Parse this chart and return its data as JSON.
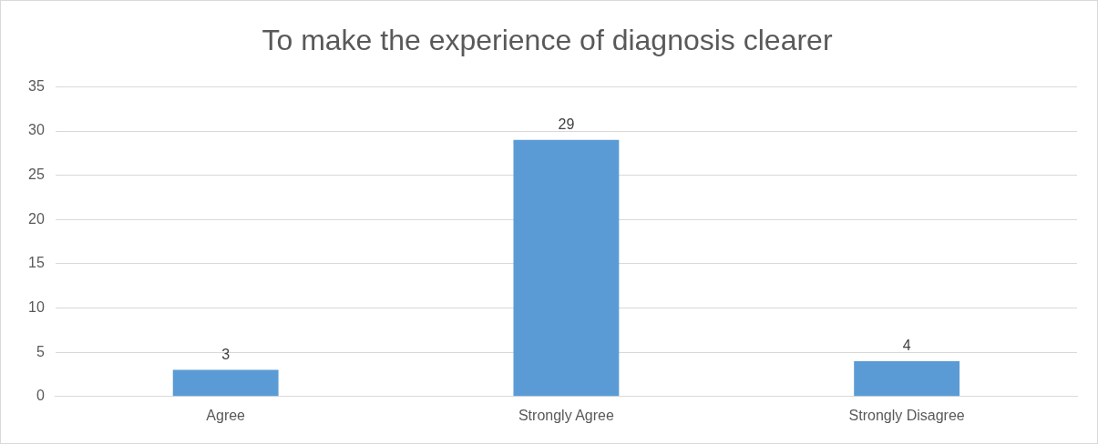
{
  "chart_data": {
    "type": "bar",
    "title": "To make the experience of diagnosis clearer",
    "categories": [
      "Agree",
      "Strongly Agree",
      "Strongly Disagree"
    ],
    "values": [
      3,
      29,
      4
    ],
    "color": "#5b9bd5",
    "ylim": [
      0,
      35
    ],
    "yticks": [
      0,
      5,
      10,
      15,
      20,
      25,
      30,
      35
    ],
    "grid": "y",
    "data_labels": true,
    "legend": false
  }
}
